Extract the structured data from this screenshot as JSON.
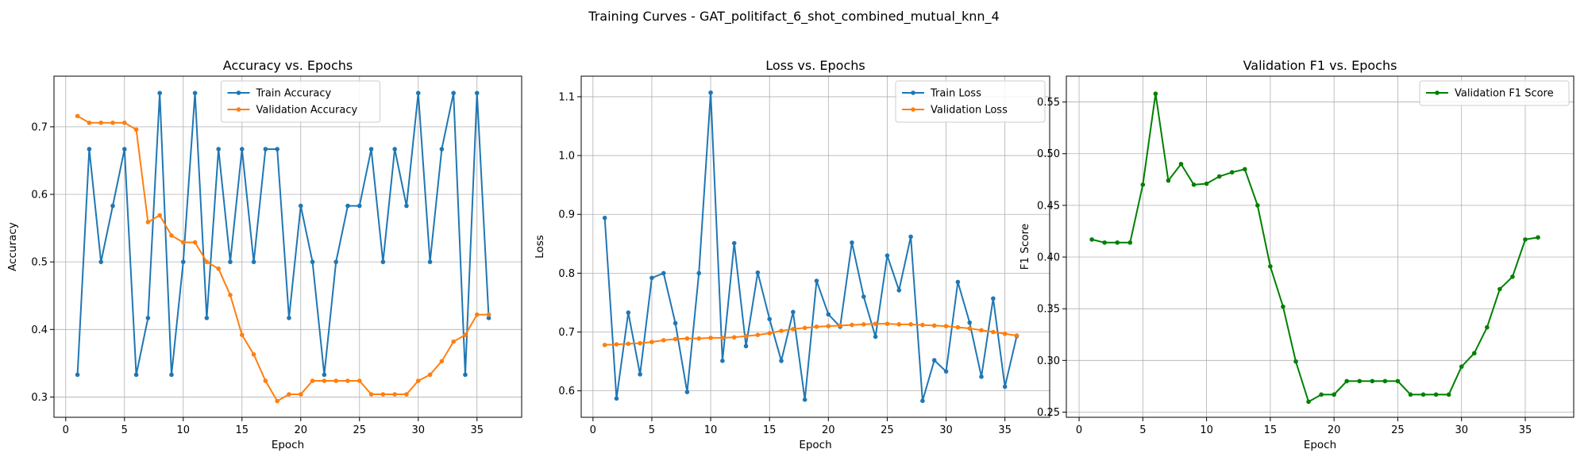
{
  "figure_title": "Training Curves - GAT_politifact_6_shot_combined_mutual_knn_4",
  "chart_data": [
    {
      "type": "line",
      "title": "Accuracy vs. Epochs",
      "xlabel": "Epoch",
      "ylabel": "Accuracy",
      "xlim": [
        -1,
        38.8
      ],
      "ylim": [
        0.27,
        0.775
      ],
      "xticks": [
        0,
        5,
        10,
        15,
        20,
        25,
        30,
        35
      ],
      "yticks": [
        0.3,
        0.4,
        0.5,
        0.6,
        0.7
      ],
      "grid": true,
      "legend": "top-center",
      "x": [
        1,
        2,
        3,
        4,
        5,
        6,
        7,
        8,
        9,
        10,
        11,
        12,
        13,
        14,
        15,
        16,
        17,
        18,
        19,
        20,
        21,
        22,
        23,
        24,
        25,
        26,
        27,
        28,
        29,
        30,
        31,
        32,
        33,
        34,
        35,
        36
      ],
      "series": [
        {
          "name": "Train Accuracy",
          "color": "#1f77b4",
          "values": [
            0.333,
            0.667,
            0.5,
            0.583,
            0.667,
            0.333,
            0.417,
            0.75,
            0.333,
            0.5,
            0.75,
            0.417,
            0.667,
            0.5,
            0.667,
            0.5,
            0.667,
            0.667,
            0.417,
            0.583,
            0.5,
            0.333,
            0.5,
            0.583,
            0.583,
            0.667,
            0.5,
            0.667,
            0.583,
            0.75,
            0.5,
            0.667,
            0.75,
            0.333,
            0.75,
            0.417
          ]
        },
        {
          "name": "Validation Accuracy",
          "color": "#ff7f0e",
          "values": [
            0.716,
            0.706,
            0.706,
            0.706,
            0.706,
            0.696,
            0.559,
            0.569,
            0.539,
            0.529,
            0.529,
            0.5,
            0.49,
            0.451,
            0.392,
            0.363,
            0.324,
            0.294,
            0.304,
            0.304,
            0.324,
            0.324,
            0.324,
            0.324,
            0.324,
            0.304,
            0.304,
            0.304,
            0.304,
            0.324,
            0.333,
            0.353,
            0.382,
            0.392,
            0.422,
            0.422
          ]
        }
      ]
    },
    {
      "type": "line",
      "title": "Loss vs. Epochs",
      "xlabel": "Epoch",
      "ylabel": "Loss",
      "xlim": [
        -1,
        38.8
      ],
      "ylim": [
        0.555,
        1.135
      ],
      "xticks": [
        0,
        5,
        10,
        15,
        20,
        25,
        30,
        35
      ],
      "yticks": [
        0.6,
        0.7,
        0.8,
        0.9,
        1.0,
        1.1
      ],
      "grid": true,
      "legend": "top-right",
      "x": [
        1,
        2,
        3,
        4,
        5,
        6,
        7,
        8,
        9,
        10,
        11,
        12,
        13,
        14,
        15,
        16,
        17,
        18,
        19,
        20,
        21,
        22,
        23,
        24,
        25,
        26,
        27,
        28,
        29,
        30,
        31,
        32,
        33,
        34,
        35,
        36
      ],
      "series": [
        {
          "name": "Train Loss",
          "color": "#1f77b4",
          "values": [
            0.894,
            0.587,
            0.733,
            0.628,
            0.792,
            0.8,
            0.715,
            0.598,
            0.8,
            1.107,
            0.651,
            0.851,
            0.676,
            0.801,
            0.722,
            0.651,
            0.734,
            0.585,
            0.787,
            0.73,
            0.709,
            0.852,
            0.76,
            0.692,
            0.83,
            0.771,
            0.862,
            0.583,
            0.652,
            0.633,
            0.785,
            0.716,
            0.624,
            0.757,
            0.607,
            0.693
          ]
        },
        {
          "name": "Validation Loss",
          "color": "#ff7f0e",
          "values": [
            0.678,
            0.679,
            0.68,
            0.681,
            0.683,
            0.686,
            0.688,
            0.689,
            0.689,
            0.69,
            0.69,
            0.691,
            0.693,
            0.695,
            0.698,
            0.702,
            0.705,
            0.707,
            0.709,
            0.71,
            0.711,
            0.712,
            0.713,
            0.714,
            0.714,
            0.713,
            0.713,
            0.712,
            0.711,
            0.71,
            0.708,
            0.706,
            0.703,
            0.7,
            0.697,
            0.694
          ]
        }
      ]
    },
    {
      "type": "line",
      "title": "Validation F1 vs. Epochs",
      "xlabel": "Epoch",
      "ylabel": "F1 Score",
      "xlim": [
        -1,
        38.8
      ],
      "ylim": [
        0.245,
        0.575
      ],
      "xticks": [
        0,
        5,
        10,
        15,
        20,
        25,
        30,
        35
      ],
      "yticks": [
        0.25,
        0.3,
        0.35,
        0.4,
        0.45,
        0.5,
        0.55
      ],
      "grid": true,
      "legend": "top-right",
      "x": [
        1,
        2,
        3,
        4,
        5,
        6,
        7,
        8,
        9,
        10,
        11,
        12,
        13,
        14,
        15,
        16,
        17,
        18,
        19,
        20,
        21,
        22,
        23,
        24,
        25,
        26,
        27,
        28,
        29,
        30,
        31,
        32,
        33,
        34,
        35,
        36
      ],
      "series": [
        {
          "name": "Validation F1 Score",
          "color": "#008000",
          "values": [
            0.417,
            0.414,
            0.414,
            0.414,
            0.47,
            0.558,
            0.474,
            0.49,
            0.47,
            0.471,
            0.478,
            0.482,
            0.485,
            0.45,
            0.391,
            0.352,
            0.299,
            0.26,
            0.267,
            0.267,
            0.28,
            0.28,
            0.28,
            0.28,
            0.28,
            0.267,
            0.267,
            0.267,
            0.267,
            0.294,
            0.307,
            0.332,
            0.369,
            0.381,
            0.417,
            0.419
          ]
        }
      ]
    }
  ]
}
